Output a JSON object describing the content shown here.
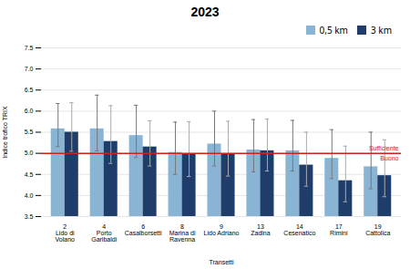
{
  "chart_data": {
    "type": "bar",
    "title": "2023",
    "xlabel": "Transetti",
    "ylabel": "Indice trofico TRIX",
    "categories": [
      "2",
      "4",
      "6",
      "8",
      "9",
      "13",
      "14",
      "17",
      "19"
    ],
    "category_labels": [
      "Lido di\nVolano",
      "Porto\nGaribaldi",
      "Casalborsetti",
      "Marina di\nRavenna",
      "Lido Adriano",
      "Zadina",
      "Cesenatico",
      "Rimini",
      "Cattolica"
    ],
    "series": [
      {
        "name": "0,5 km",
        "color": "#8ab4d4",
        "values": [
          5.58,
          5.58,
          5.42,
          5.02,
          5.22,
          5.08,
          5.06,
          4.88,
          4.68
        ],
        "err_up": [
          0.6,
          0.8,
          0.72,
          0.72,
          0.78,
          0.72,
          0.72,
          0.68,
          0.82
        ],
        "err_down": [
          0.42,
          0.52,
          0.52,
          0.52,
          0.52,
          0.52,
          0.48,
          0.48,
          0.52
        ]
      },
      {
        "name": "3 km",
        "color": "#1f3d6b",
        "values": [
          5.5,
          5.28,
          5.15,
          4.97,
          4.98,
          5.06,
          4.72,
          4.35,
          4.47
        ],
        "err_up": [
          0.7,
          0.85,
          0.62,
          0.78,
          0.78,
          0.75,
          0.78,
          0.82,
          0.85
        ],
        "err_down": [
          0.45,
          0.52,
          0.45,
          0.52,
          0.52,
          0.48,
          0.5,
          0.5,
          0.5
        ]
      }
    ],
    "ylim": [
      3.5,
      7.5
    ],
    "yticks": [
      {
        "value": 3.5,
        "label": "3.5"
      },
      {
        "value": 4.0,
        "label": "4.0"
      },
      {
        "value": 4.5,
        "label": "4.5"
      },
      {
        "value": 5.0,
        "label": "5.0"
      },
      {
        "value": 5.5,
        "label": "5.5"
      },
      {
        "value": 6.0,
        "label": "6.0"
      },
      {
        "value": 6.5,
        "label": "6.5"
      },
      {
        "value": 7.0,
        "label": "7.0"
      },
      {
        "value": 7.5,
        "label": "7.5"
      }
    ],
    "grid": true,
    "legend": "upper right",
    "hline": {
      "y": 5.0,
      "color": "#cc2222",
      "label_above": "Sufficiente",
      "label_below": "Buono"
    }
  }
}
